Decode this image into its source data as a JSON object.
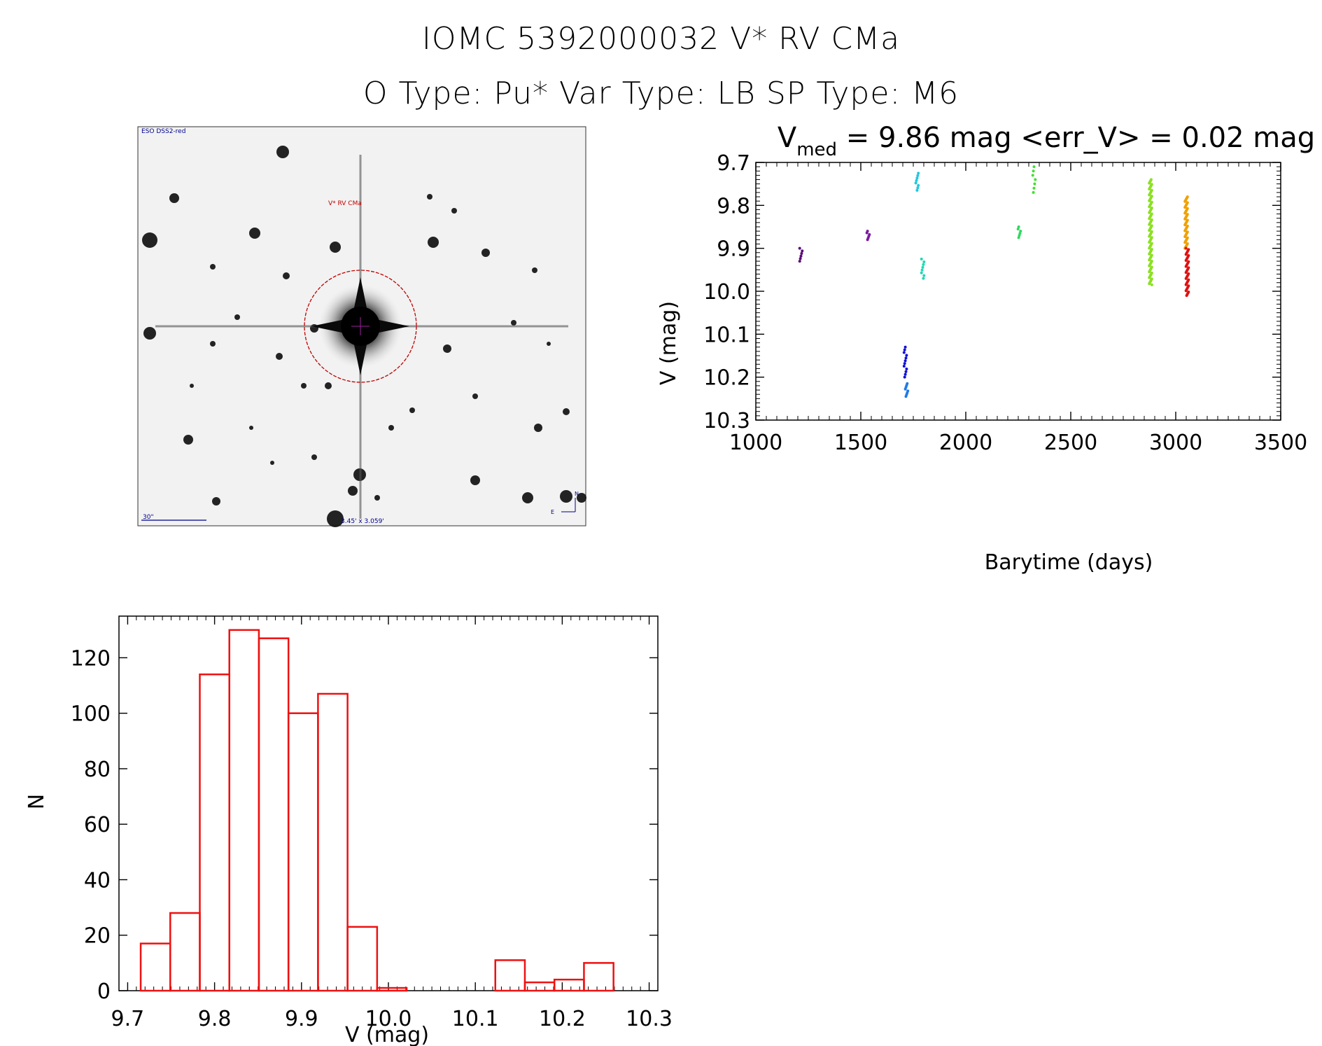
{
  "header": {
    "title_line1": "IOMC 5392000032    V* RV CMa",
    "title_line2": "O Type: Pu*   Var Type: LB   SP Type: M6"
  },
  "finder_chart": {
    "survey_label": "ESO DSS2-red",
    "target_label": "V* RV CMa",
    "scale_label": "30\"",
    "fov_label": "3.45' x 3.059'",
    "north_label": "N",
    "east_label": "E",
    "label_color": "#00008b",
    "target_color": "#c00000"
  },
  "chart_data": [
    {
      "type": "scatter",
      "title_prefix": "V",
      "title_subscript": "med",
      "title_rest": " = 9.86 mag <err_V> = 0.02 mag",
      "xlabel": "Barytime (days)",
      "ylabel": "V (mag)",
      "xlim": [
        1000,
        3500
      ],
      "ylim": [
        10.3,
        9.7
      ],
      "xticks": [
        1000,
        1500,
        2000,
        2500,
        3000,
        3500
      ],
      "xtick_labels": [
        "1000",
        "1500",
        "2000",
        "2500",
        "3000",
        "3500"
      ],
      "yticks": [
        9.7,
        9.8,
        9.9,
        10.0,
        10.1,
        10.2,
        10.3
      ],
      "ytick_labels": [
        "9.7",
        "9.8",
        "9.9",
        "10.0",
        "10.1",
        "10.2",
        "10.3"
      ],
      "groups": [
        {
          "x": 1215,
          "y_min": 9.9,
          "y_max": 9.93,
          "n": 6,
          "color": "#5a0a78"
        },
        {
          "x": 1535,
          "y_min": 9.86,
          "y_max": 9.88,
          "n": 6,
          "color": "#7a1aa0"
        },
        {
          "x": 1712,
          "y_min": 10.13,
          "y_max": 10.2,
          "n": 12,
          "color": "#1010d8"
        },
        {
          "x": 1718,
          "y_min": 10.215,
          "y_max": 10.245,
          "n": 8,
          "color": "#1e78e6"
        },
        {
          "x": 1768,
          "y_min": 9.725,
          "y_max": 9.765,
          "n": 8,
          "color": "#20c8e0"
        },
        {
          "x": 1795,
          "y_min": 9.925,
          "y_max": 9.97,
          "n": 8,
          "color": "#20d8b4"
        },
        {
          "x": 2255,
          "y_min": 9.85,
          "y_max": 9.875,
          "n": 6,
          "color": "#30d860"
        },
        {
          "x": 2325,
          "y_min": 9.71,
          "y_max": 9.77,
          "n": 7,
          "color": "#40e030"
        },
        {
          "x": 2880,
          "y_min": 9.74,
          "y_max": 9.985,
          "n": 90,
          "color": "#8ce020"
        },
        {
          "x": 3050,
          "y_min": 9.78,
          "y_max": 9.9,
          "n": 45,
          "color": "#f0a000"
        },
        {
          "x": 3055,
          "y_min": 9.9,
          "y_max": 10.01,
          "n": 40,
          "color": "#e01010"
        }
      ]
    },
    {
      "type": "histogram",
      "xlabel": "V (mag)",
      "ylabel": "N",
      "xlim": [
        9.69,
        10.31
      ],
      "ylim": [
        0,
        135
      ],
      "xticks": [
        9.7,
        9.8,
        9.9,
        10.0,
        10.1,
        10.2,
        10.3
      ],
      "xtick_labels": [
        "9.7",
        "9.8",
        "9.9",
        "10.0",
        "10.1",
        "10.2",
        "10.3"
      ],
      "yticks": [
        0,
        20,
        40,
        60,
        80,
        100,
        120
      ],
      "ytick_labels": [
        "0",
        "20",
        "40",
        "60",
        "80",
        "100",
        "120"
      ],
      "bar_color": "#ee1111",
      "bin_start": 9.715,
      "bin_width": 0.034,
      "counts": [
        17,
        28,
        114,
        130,
        127,
        100,
        107,
        23,
        1,
        0,
        0,
        0,
        11,
        3,
        4,
        10
      ]
    }
  ]
}
